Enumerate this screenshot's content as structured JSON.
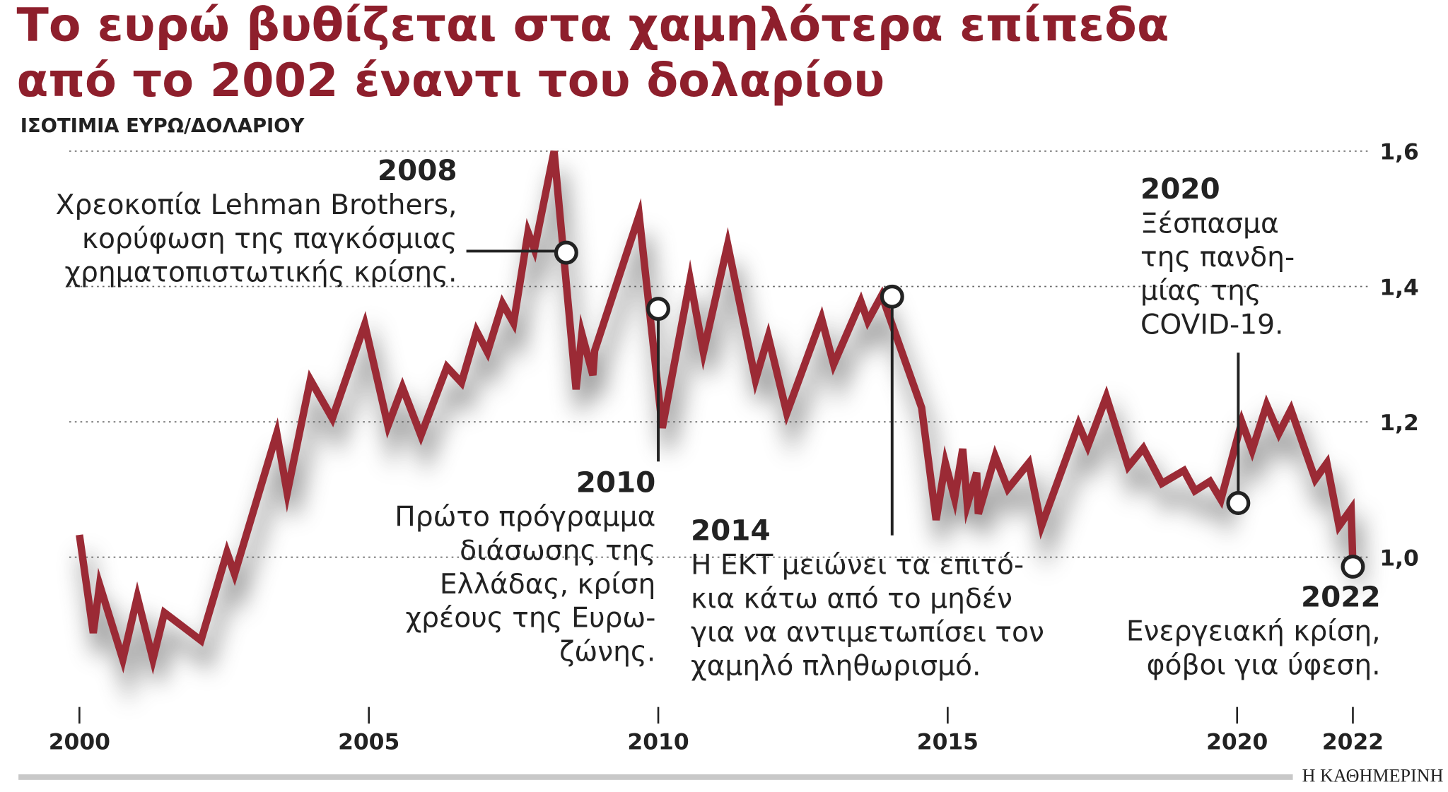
{
  "chart_data": {
    "type": "line",
    "title": [
      "Το ευρώ βυθίζεται στα χαμηλότερα επίπεδα",
      "από το 2002 έναντι του δολαρίου"
    ],
    "subtitle": "ΙΣΟΤΙΜΙΑ ΕΥΡΩ/ΔΟΛΑΡΙΟΥ",
    "source": "Η ΚΑΘΗΜΕΡΙΝΗ",
    "color": "#9b2a35",
    "grid": true,
    "xlim": [
      2000,
      2022
    ],
    "xticks": [
      2000,
      2005,
      2010,
      2015,
      2020,
      2022
    ],
    "ylim": [
      0.78,
      1.62
    ],
    "yticks": [
      {
        "value": 1.0,
        "label": "1,0"
      },
      {
        "value": 1.2,
        "label": "1,2"
      },
      {
        "value": 1.4,
        "label": "1,4"
      },
      {
        "value": 1.6,
        "label": "1,6"
      }
    ],
    "x": [
      2000.0,
      2000.24,
      2000.35,
      2000.75,
      2001.0,
      2001.27,
      2001.47,
      2002.1,
      2002.55,
      2002.68,
      2003.41,
      2003.59,
      2003.99,
      2004.37,
      2004.93,
      2005.33,
      2005.58,
      2005.9,
      2006.35,
      2006.6,
      2006.86,
      2007.05,
      2007.31,
      2007.5,
      2007.75,
      2007.86,
      2008.2,
      2008.58,
      2008.68,
      2008.87,
      2008.9,
      2009.67,
      2010.07,
      2010.55,
      2010.78,
      2011.2,
      2011.68,
      2011.9,
      2012.22,
      2012.82,
      2013.03,
      2013.5,
      2013.62,
      2013.86,
      2014.55,
      2014.8,
      2014.96,
      2015.12,
      2015.26,
      2015.34,
      2015.5,
      2015.53,
      2015.82,
      2016.04,
      2016.4,
      2016.62,
      2017.26,
      2017.42,
      2017.74,
      2018.12,
      2018.38,
      2018.7,
      2019.08,
      2019.27,
      2019.53,
      2019.72,
      2020.08,
      2020.26,
      2020.51,
      2020.72,
      2020.93,
      2021.35,
      2021.55,
      2021.76,
      2021.97,
      2022.0
    ],
    "values": [
      1.033,
      0.888,
      0.959,
      0.849,
      0.941,
      0.849,
      0.918,
      0.877,
      1.007,
      0.975,
      1.183,
      1.095,
      1.262,
      1.205,
      1.344,
      1.194,
      1.251,
      1.18,
      1.281,
      1.258,
      1.334,
      1.303,
      1.375,
      1.346,
      1.48,
      1.455,
      1.6,
      1.248,
      1.33,
      1.269,
      1.305,
      1.505,
      1.191,
      1.41,
      1.303,
      1.462,
      1.262,
      1.326,
      1.213,
      1.353,
      1.285,
      1.378,
      1.349,
      1.387,
      1.221,
      1.055,
      1.139,
      1.087,
      1.16,
      1.078,
      1.125,
      1.064,
      1.149,
      1.101,
      1.139,
      1.046,
      1.196,
      1.164,
      1.237,
      1.134,
      1.161,
      1.109,
      1.128,
      1.098,
      1.112,
      1.085,
      1.2,
      1.158,
      1.225,
      1.183,
      1.218,
      1.115,
      1.139,
      1.046,
      1.071,
      0.989
    ],
    "annotations": [
      {
        "year": "2008",
        "lines": [
          "Χρεοκοπία Lehman Brothers,",
          "κορύφωση της παγκόσμιας",
          "χρηματοπιστωτικής κρίσης."
        ],
        "x": 2008.41,
        "y": 1.45
      },
      {
        "year": "2010",
        "lines": [
          "Πρώτο πρόγραμμα",
          "διάσωσης της",
          "Ελλάδας, κρίση",
          "χρέους της Ευρω-",
          "ζώνης."
        ],
        "x": 2010.0,
        "y": 1.367
      },
      {
        "year": "2014",
        "lines": [
          "Η ΕΚΤ μειώνει τα επιτό-",
          "κια κάτω από το μηδέν",
          "για να  αντιμετωπίσει τον",
          "χαμηλό πληθωρισμό."
        ],
        "x": 2014.04,
        "y": 1.385
      },
      {
        "year": "2020",
        "lines": [
          "Ξέσπασμα",
          "της πανδη-",
          "μίας της",
          "COVID-19."
        ],
        "x": 2020.02,
        "y": 1.08
      },
      {
        "year": "2022",
        "lines": [
          "Ενεργειακή κρίση,",
          "φόβοι για ύφεση."
        ],
        "x": 2022.0,
        "y": 0.986
      }
    ]
  }
}
